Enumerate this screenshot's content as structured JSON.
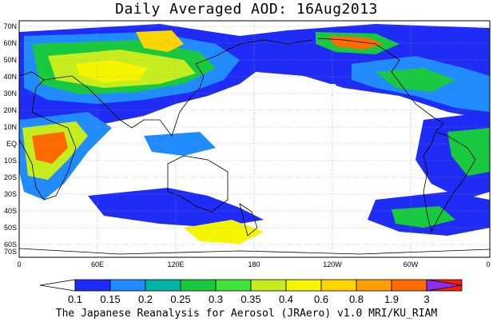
{
  "title": "Daily Averaged AOD: 16Aug2013",
  "credit": "The Japanese Reanalysis for Aerosol (JRAero) v1.0 MRI/KU_RIAM",
  "map": {
    "lat_labels": [
      "70N",
      "60N",
      "50N",
      "40N",
      "30N",
      "20N",
      "10N",
      "EQ",
      "10S",
      "20S",
      "30S",
      "40S",
      "50S",
      "60S",
      "70S"
    ],
    "lon_labels": [
      "0",
      "60E",
      "120E",
      "180",
      "120W",
      "60W",
      "0"
    ]
  },
  "legend": {
    "levels": [
      "0.1",
      "0.15",
      "0.2",
      "0.25",
      "0.3",
      "0.35",
      "0.4",
      "0.6",
      "0.8",
      "1.9",
      "3"
    ],
    "colors": [
      "#ffffff",
      "#1e2cf5",
      "#1f8bff",
      "#00b4a8",
      "#18c940",
      "#41e33a",
      "#c6ee1e",
      "#f5f500",
      "#ffd500",
      "#ffa000",
      "#ff6b00",
      "#ff1b00",
      "#8c2df0"
    ]
  }
}
